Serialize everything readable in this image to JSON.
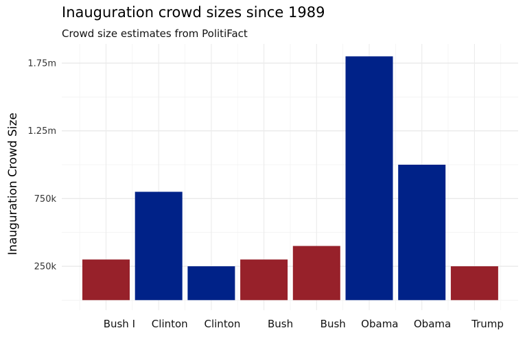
{
  "chart_data": {
    "type": "bar",
    "title": "Inauguration crowd sizes since 1989",
    "subtitle": "Crowd size estimates from PolitiFact",
    "xlabel": "",
    "ylabel": "Inauguration Crowd Size",
    "categories": [
      "Bush I",
      "Clinton",
      "Clinton",
      "Bush",
      "Bush",
      "Obama",
      "Obama",
      "Trump"
    ],
    "values": [
      300000,
      800000,
      250000,
      300000,
      400000,
      1800000,
      1000000,
      250000
    ],
    "party_colors": [
      "#97212a",
      "#002288",
      "#002288",
      "#97212a",
      "#97212a",
      "#002288",
      "#002288",
      "#97212a"
    ],
    "y_ticks": [
      250000,
      750000,
      1250000,
      1750000
    ],
    "y_tick_labels": [
      "250k",
      "750k",
      "1.25m",
      "1.75m"
    ],
    "ylim": [
      -50000,
      1900000
    ],
    "grid": true,
    "legend": "none"
  }
}
